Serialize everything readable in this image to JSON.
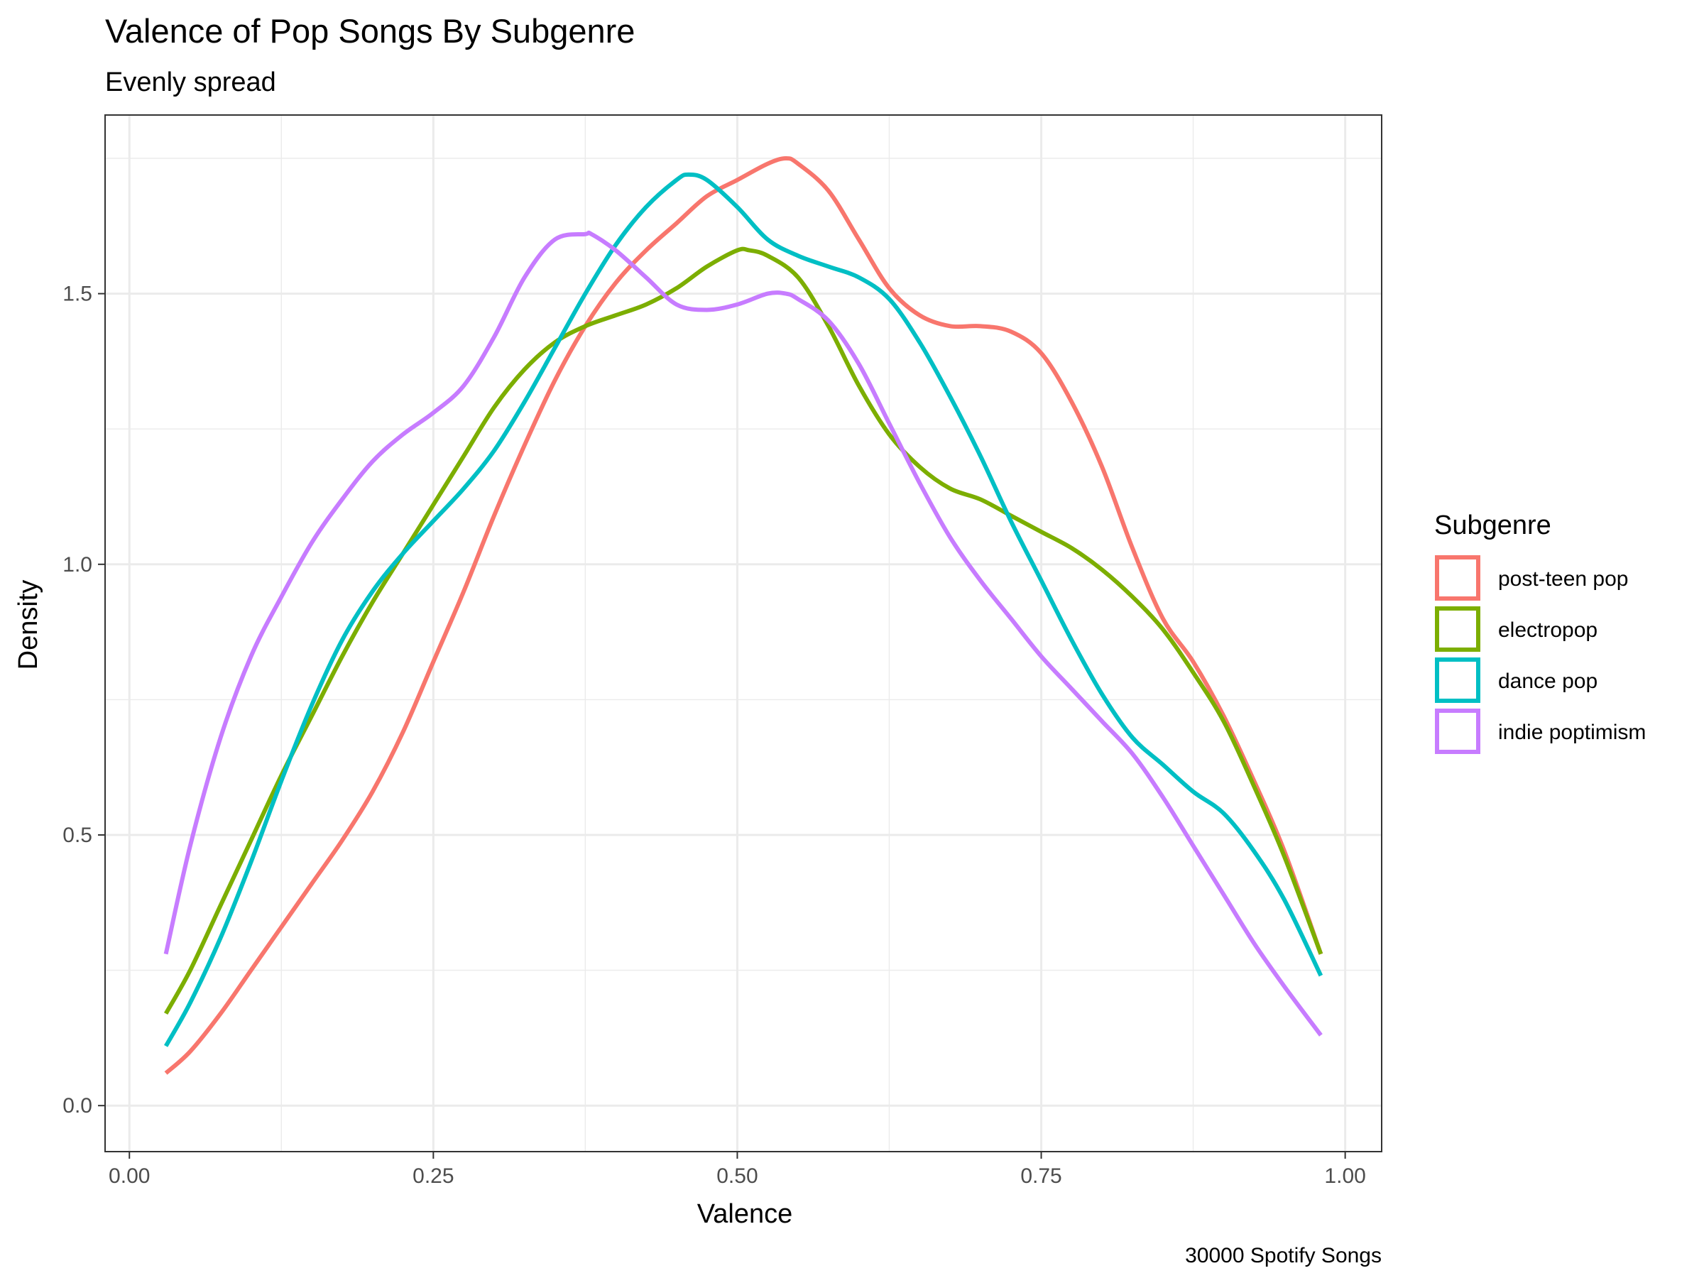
{
  "chart_data": {
    "type": "line",
    "title": "Valence of Pop Songs By Subgenre",
    "subtitle": "Evenly spread",
    "xlabel": "Valence",
    "ylabel": "Density",
    "caption": "30000 Spotify Songs",
    "xlim": [
      -0.02,
      1.03
    ],
    "ylim": [
      -0.085,
      1.83
    ],
    "x_ticks": [
      0.0,
      0.25,
      0.5,
      0.75,
      1.0
    ],
    "x_tick_labels": [
      "0.00",
      "0.25",
      "0.50",
      "0.75",
      "1.00"
    ],
    "y_ticks": [
      0.0,
      0.5,
      1.0,
      1.5
    ],
    "y_tick_labels": [
      "0.0",
      "0.5",
      "1.0",
      "1.5"
    ],
    "grid": true,
    "legend": {
      "title": "Subgenre",
      "position": "right"
    },
    "series": [
      {
        "name": "post-teen pop",
        "color": "#F8766D",
        "x": [
          0.03,
          0.05,
          0.075,
          0.1,
          0.125,
          0.15,
          0.175,
          0.2,
          0.225,
          0.25,
          0.275,
          0.3,
          0.325,
          0.35,
          0.375,
          0.4,
          0.425,
          0.45,
          0.475,
          0.5,
          0.525,
          0.54,
          0.55,
          0.575,
          0.6,
          0.625,
          0.65,
          0.675,
          0.7,
          0.725,
          0.75,
          0.775,
          0.8,
          0.825,
          0.85,
          0.875,
          0.9,
          0.925,
          0.95,
          0.98
        ],
        "y": [
          0.06,
          0.1,
          0.17,
          0.25,
          0.33,
          0.41,
          0.49,
          0.58,
          0.69,
          0.82,
          0.95,
          1.09,
          1.22,
          1.34,
          1.44,
          1.52,
          1.58,
          1.63,
          1.68,
          1.71,
          1.74,
          1.75,
          1.74,
          1.69,
          1.6,
          1.51,
          1.46,
          1.44,
          1.44,
          1.43,
          1.39,
          1.3,
          1.18,
          1.03,
          0.9,
          0.82,
          0.72,
          0.6,
          0.47,
          0.28
        ]
      },
      {
        "name": "electropop",
        "color": "#7CAE00",
        "x": [
          0.03,
          0.05,
          0.075,
          0.1,
          0.125,
          0.15,
          0.175,
          0.2,
          0.225,
          0.25,
          0.275,
          0.3,
          0.325,
          0.35,
          0.375,
          0.4,
          0.425,
          0.45,
          0.475,
          0.5,
          0.51,
          0.525,
          0.55,
          0.575,
          0.6,
          0.625,
          0.65,
          0.675,
          0.7,
          0.725,
          0.75,
          0.775,
          0.8,
          0.825,
          0.85,
          0.875,
          0.9,
          0.925,
          0.95,
          0.98
        ],
        "y": [
          0.17,
          0.25,
          0.37,
          0.49,
          0.61,
          0.72,
          0.83,
          0.93,
          1.02,
          1.11,
          1.2,
          1.29,
          1.36,
          1.41,
          1.44,
          1.46,
          1.48,
          1.51,
          1.55,
          1.58,
          1.58,
          1.57,
          1.53,
          1.44,
          1.33,
          1.24,
          1.18,
          1.14,
          1.12,
          1.09,
          1.06,
          1.03,
          0.99,
          0.94,
          0.88,
          0.8,
          0.71,
          0.59,
          0.46,
          0.28
        ]
      },
      {
        "name": "dance pop",
        "color": "#00BFC4",
        "x": [
          0.03,
          0.05,
          0.075,
          0.1,
          0.125,
          0.15,
          0.175,
          0.2,
          0.225,
          0.25,
          0.275,
          0.3,
          0.325,
          0.35,
          0.375,
          0.4,
          0.425,
          0.45,
          0.46,
          0.475,
          0.5,
          0.525,
          0.55,
          0.575,
          0.6,
          0.625,
          0.65,
          0.675,
          0.7,
          0.725,
          0.75,
          0.775,
          0.8,
          0.825,
          0.85,
          0.875,
          0.9,
          0.925,
          0.95,
          0.98
        ],
        "y": [
          0.11,
          0.19,
          0.31,
          0.45,
          0.6,
          0.74,
          0.86,
          0.95,
          1.02,
          1.08,
          1.14,
          1.21,
          1.3,
          1.4,
          1.5,
          1.59,
          1.66,
          1.71,
          1.72,
          1.71,
          1.66,
          1.6,
          1.57,
          1.55,
          1.53,
          1.49,
          1.41,
          1.31,
          1.2,
          1.08,
          0.97,
          0.86,
          0.76,
          0.68,
          0.63,
          0.58,
          0.54,
          0.47,
          0.38,
          0.24
        ]
      },
      {
        "name": "indie poptimism",
        "color": "#C77CFF",
        "x": [
          0.03,
          0.05,
          0.075,
          0.1,
          0.125,
          0.15,
          0.175,
          0.2,
          0.225,
          0.25,
          0.275,
          0.3,
          0.325,
          0.35,
          0.375,
          0.38,
          0.4,
          0.425,
          0.45,
          0.475,
          0.5,
          0.525,
          0.54,
          0.55,
          0.575,
          0.6,
          0.625,
          0.65,
          0.675,
          0.7,
          0.725,
          0.75,
          0.775,
          0.8,
          0.825,
          0.85,
          0.875,
          0.9,
          0.925,
          0.95,
          0.98
        ],
        "y": [
          0.28,
          0.48,
          0.68,
          0.83,
          0.94,
          1.04,
          1.12,
          1.19,
          1.24,
          1.28,
          1.33,
          1.42,
          1.53,
          1.6,
          1.61,
          1.61,
          1.58,
          1.53,
          1.48,
          1.47,
          1.48,
          1.5,
          1.5,
          1.49,
          1.45,
          1.37,
          1.26,
          1.15,
          1.05,
          0.97,
          0.9,
          0.83,
          0.77,
          0.71,
          0.65,
          0.57,
          0.48,
          0.39,
          0.3,
          0.22,
          0.13
        ]
      }
    ]
  }
}
